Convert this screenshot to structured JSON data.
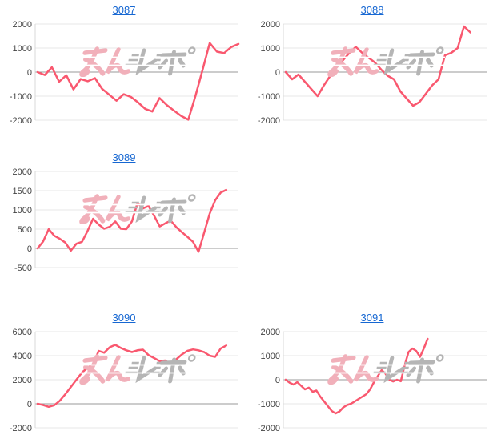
{
  "styles": {
    "line_color": "#f9586f",
    "link_color": "#1667d2",
    "grid_color": "#e7e7e7",
    "zero_line_color": "#999999",
    "axis_color": "#d9d9d9",
    "label_color": "#434343",
    "background": "#ffffff",
    "watermark_pink": "#f1b0ba",
    "watermark_gray": "#b5b5b5"
  },
  "watermark": {
    "text": "みんレポ"
  },
  "chart_data": [
    {
      "type": "line",
      "title": "3087",
      "yticks": [
        2000,
        1000,
        0,
        -1000,
        -2000
      ],
      "ylim": [
        -2000,
        2000
      ],
      "end_frac": 1.0,
      "values": [
        0,
        -120,
        200,
        -400,
        -130,
        -720,
        -290,
        -380,
        -250,
        -700,
        -940,
        -1190,
        -920,
        -1030,
        -1260,
        -1530,
        -1640,
        -1080,
        -1370,
        -1600,
        -1820,
        -1980,
        -1000,
        100,
        1210,
        850,
        790,
        1045,
        1170
      ]
    },
    {
      "type": "line",
      "title": "3088",
      "yticks": [
        2000,
        1000,
        0,
        -1000,
        -2000
      ],
      "ylim": [
        -2000,
        2000
      ],
      "end_frac": 0.92,
      "values": [
        0,
        -300,
        -100,
        -400,
        -700,
        -1000,
        -550,
        -150,
        200,
        500,
        800,
        1050,
        800,
        600,
        400,
        100,
        -150,
        -300,
        -800,
        -1100,
        -1400,
        -1250,
        -900,
        -550,
        -300,
        700,
        800,
        1000,
        1900,
        1650
      ]
    },
    {
      "type": "line",
      "title": "3089",
      "yticks": [
        2000,
        1500,
        1000,
        500,
        0,
        -500
      ],
      "ylim": [
        -500,
        2000
      ],
      "end_frac": 0.94,
      "values": [
        0,
        180,
        500,
        330,
        250,
        150,
        -60,
        120,
        170,
        450,
        770,
        620,
        510,
        560,
        700,
        510,
        500,
        700,
        1180,
        1040,
        1100,
        850,
        570,
        650,
        720,
        550,
        420,
        300,
        170,
        -90,
        400,
        900,
        1250,
        1450,
        1520
      ]
    },
    {
      "type": "line",
      "title": "3090",
      "yticks": [
        6000,
        4000,
        2000,
        0,
        -2000
      ],
      "ylim": [
        -2000,
        6000
      ],
      "end_frac": 0.94,
      "values": [
        0,
        -100,
        -250,
        -120,
        250,
        800,
        1400,
        2000,
        2600,
        3000,
        3250,
        4400,
        4250,
        4700,
        4900,
        4650,
        4450,
        4300,
        4450,
        4500,
        4050,
        3800,
        3550,
        3600,
        3300,
        3700,
        4100,
        4400,
        4520,
        4450,
        4300,
        4000,
        3900,
        4600,
        4850
      ]
    },
    {
      "type": "line",
      "title": "3091",
      "yticks": [
        2000,
        1000,
        0,
        -1000,
        -2000
      ],
      "ylim": [
        -2000,
        2000
      ],
      "end_frac": 0.71,
      "values": [
        0,
        -120,
        -200,
        -100,
        -250,
        -400,
        -330,
        -500,
        -450,
        -700,
        -900,
        -1100,
        -1300,
        -1400,
        -1320,
        -1150,
        -1050,
        -1000,
        -900,
        -800,
        -700,
        -600,
        -400,
        -100,
        150,
        400,
        250,
        0,
        -70,
        0,
        -60,
        600,
        1150,
        1300,
        1200,
        950,
        1300,
        1700
      ]
    }
  ]
}
